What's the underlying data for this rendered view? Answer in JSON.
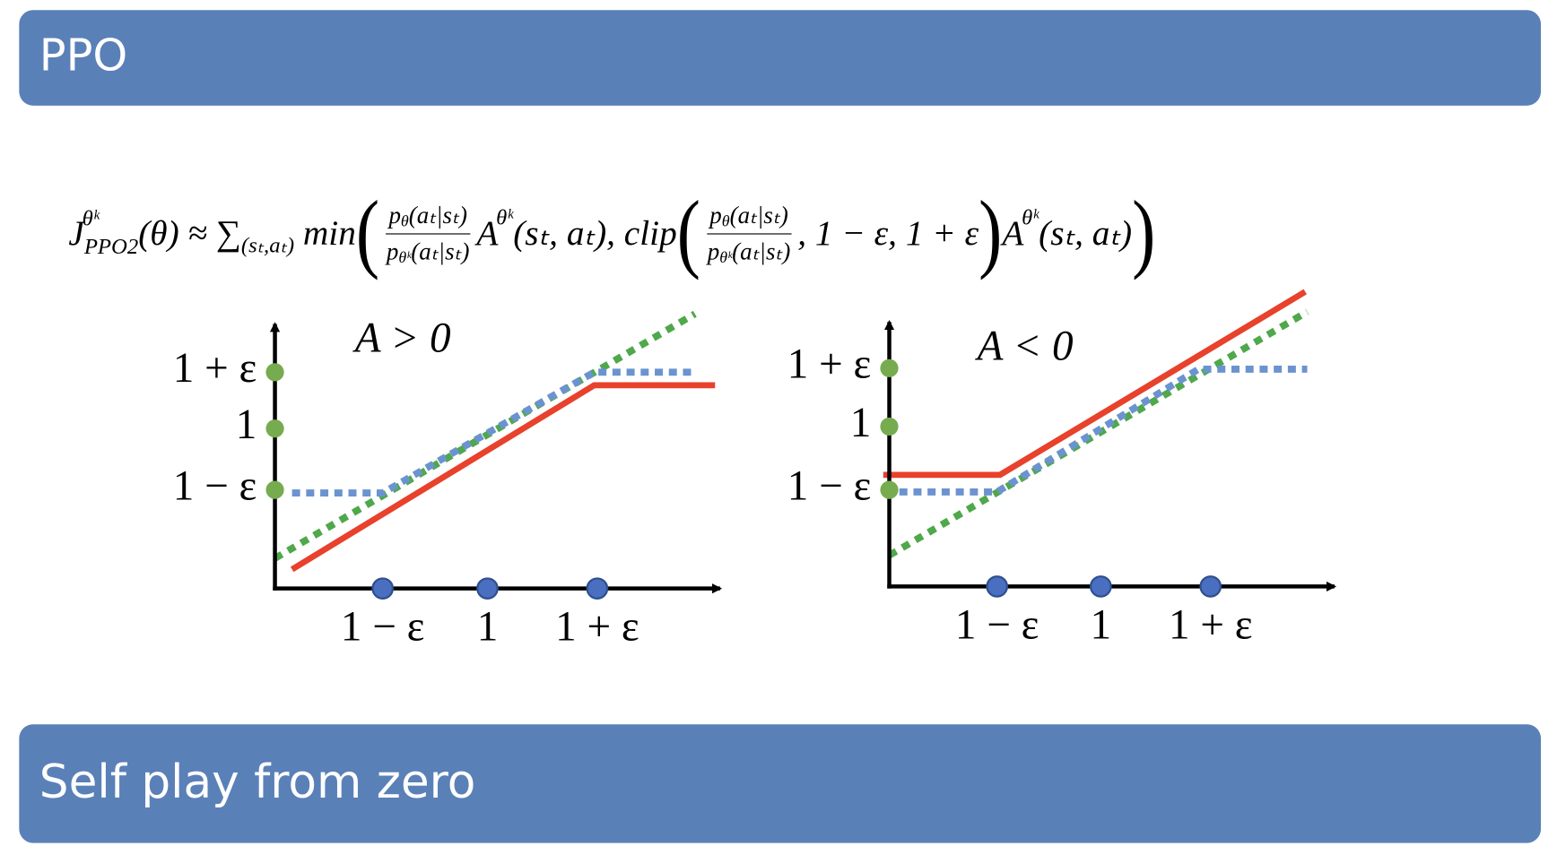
{
  "header": {
    "title": "PPO"
  },
  "formula": [
    {
      "base": "J",
      "sup": "θᵏ",
      "sub": "PPO2"
    },
    {
      "text": "(θ) ≈ "
    },
    {
      "base": "∑",
      "sub": "(sₜ,aₜ)"
    },
    {
      "text": " min"
    },
    {
      "big": "("
    },
    {
      "num": [
        {
          "base": "p",
          "sub": "θ"
        },
        {
          "text": "(aₜ|sₜ)"
        }
      ],
      "den": [
        {
          "base": "p",
          "sub": "θᵏ"
        },
        {
          "text": "(aₜ|sₜ)"
        }
      ]
    },
    {
      "base": "A",
      "sup": "θᵏ"
    },
    {
      "text": "(sₜ, aₜ), clip"
    },
    {
      "big": "("
    },
    {
      "num": [
        {
          "base": "p",
          "sub": "θ"
        },
        {
          "text": "(aₜ|sₜ)"
        }
      ],
      "den": [
        {
          "base": "p",
          "sub": "θᵏ"
        },
        {
          "text": "(aₜ|sₜ)"
        }
      ]
    },
    {
      "text": ", 1 − ε, 1 + ε"
    },
    {
      "big": ")"
    },
    {
      "base": "A",
      "sup": "θᵏ"
    },
    {
      "text": "(sₜ, aₜ)"
    },
    {
      "big": ")"
    }
  ],
  "diagrams": [
    {
      "title": "A > 0",
      "y_labels": [
        "1 + ε",
        "1",
        "1 − ε"
      ],
      "x_labels": [
        "1 − ε",
        "1",
        "1 + ε"
      ]
    },
    {
      "title": "A < 0",
      "y_labels": [
        "1 + ε",
        "1",
        "1 − ε"
      ],
      "x_labels": [
        "1 − ε",
        "1",
        "1 + ε"
      ]
    }
  ],
  "footer": {
    "title": "Self play from zero"
  }
}
